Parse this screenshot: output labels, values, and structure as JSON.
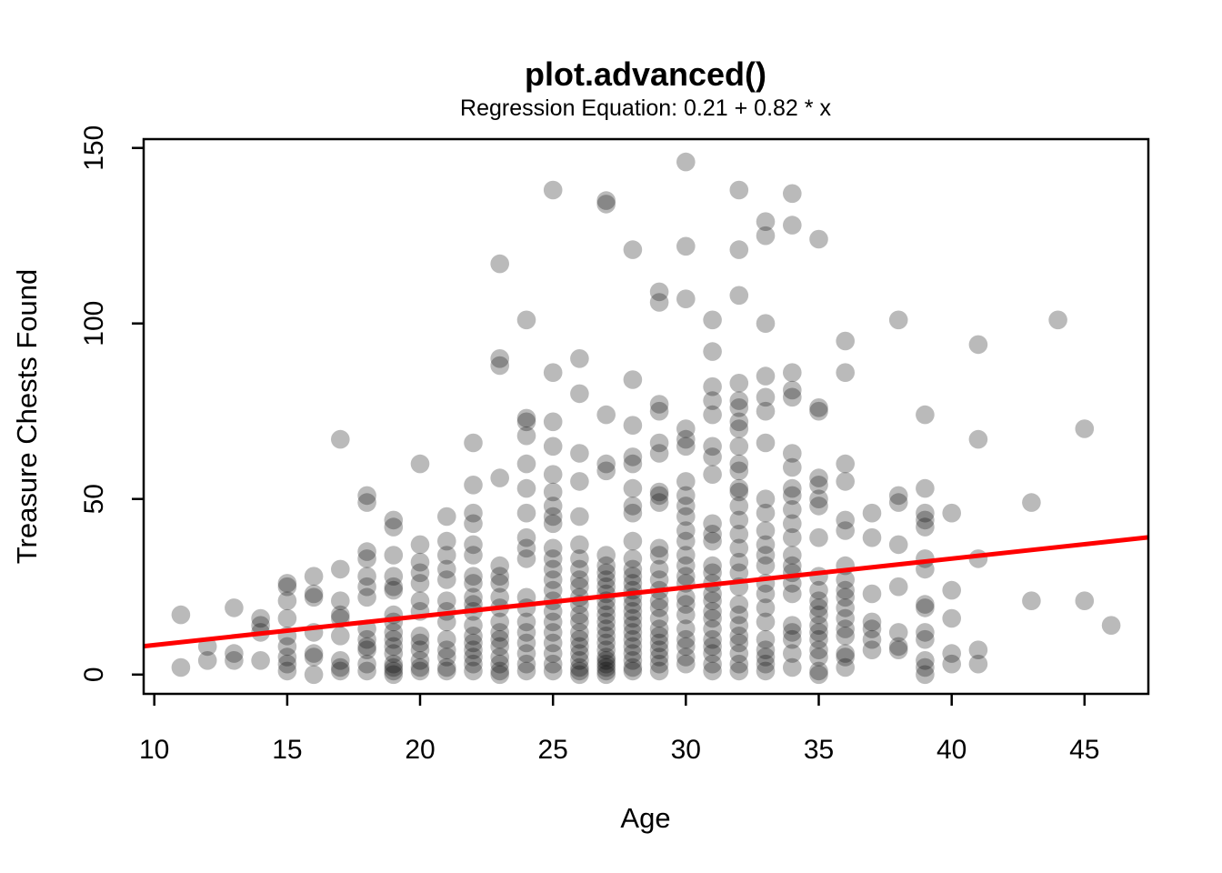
{
  "title": "plot.advanced()",
  "subtitle": "Regression Equation: 0.21 + 0.82 * x",
  "chart_data": {
    "type": "scatter",
    "title": "plot.advanced()",
    "subtitle": "Regression Equation: 0.21 + 0.82 * x",
    "xlabel": "Age",
    "ylabel": "Treasure Chests Found",
    "x_ticks": [
      10,
      15,
      20,
      25,
      30,
      35,
      40,
      45
    ],
    "y_ticks": [
      0,
      50,
      100,
      150
    ],
    "xlim": [
      9.6,
      47.4
    ],
    "ylim": [
      -5.5,
      152.5
    ],
    "grid": false,
    "legend": "none",
    "point_color": "#000000",
    "point_opacity": 0.27,
    "point_radius_px": 10.3,
    "axis_color": "#000000",
    "regression": {
      "intercept": 0.21,
      "slope": 0.82,
      "color": "#ff0000",
      "equation_label": "0.21 + 0.82 * x"
    },
    "points_by_age": {
      "11": [
        17,
        2
      ],
      "12": [
        8,
        4
      ],
      "13": [
        19,
        6,
        4
      ],
      "14": [
        16,
        14,
        12,
        4
      ],
      "15": [
        26,
        25,
        21,
        16,
        11,
        8,
        5,
        3,
        1
      ],
      "16": [
        28,
        23,
        22,
        12,
        6,
        5,
        0
      ],
      "17": [
        67,
        30,
        21,
        17,
        16,
        11,
        4,
        2,
        1
      ],
      "18": [
        51,
        49,
        35,
        33,
        28,
        25,
        22,
        13,
        10,
        8,
        7,
        3,
        1
      ],
      "19": [
        44,
        42,
        34,
        28,
        25,
        24,
        17,
        15,
        12,
        10,
        8,
        6,
        3,
        2,
        1,
        0
      ],
      "20": [
        60,
        37,
        32,
        29,
        26,
        21,
        18,
        11,
        9,
        7,
        4,
        2,
        1
      ],
      "21": [
        45,
        38,
        34,
        30,
        27,
        21,
        18,
        15,
        10,
        7,
        5,
        2,
        1
      ],
      "22": [
        66,
        54,
        46,
        43,
        37,
        34,
        28,
        26,
        22,
        20,
        18,
        14,
        11,
        9,
        7,
        5,
        3,
        1
      ],
      "23": [
        117,
        90,
        88,
        56,
        31,
        28,
        26,
        22,
        19,
        15,
        12,
        10,
        8,
        5,
        3,
        1,
        0
      ],
      "24": [
        101,
        73,
        72,
        68,
        60,
        53,
        46,
        39,
        36,
        33,
        22,
        19,
        15,
        12,
        9,
        6,
        3,
        1
      ],
      "25": [
        138,
        86,
        72,
        65,
        57,
        52,
        48,
        45,
        43,
        36,
        33,
        30,
        27,
        24,
        21,
        18,
        15,
        12,
        9,
        6,
        3,
        1
      ],
      "26": [
        90,
        80,
        63,
        55,
        45,
        37,
        33,
        30,
        27,
        25,
        22,
        20,
        17,
        15,
        12,
        10,
        8,
        6,
        4,
        2,
        1,
        0
      ],
      "27": [
        135,
        134,
        74,
        60,
        58,
        34,
        31,
        29,
        27,
        25,
        23,
        21,
        19,
        17,
        15,
        13,
        11,
        9,
        7,
        5,
        4,
        3,
        2,
        1,
        0
      ],
      "28": [
        121,
        84,
        71,
        62,
        60,
        53,
        48,
        46,
        38,
        33,
        30,
        28,
        26,
        24,
        22,
        20,
        18,
        16,
        14,
        12,
        10,
        8,
        6,
        4,
        2,
        1
      ],
      "29": [
        109,
        106,
        77,
        75,
        66,
        63,
        52,
        51,
        49,
        36,
        34,
        30,
        27,
        24,
        21,
        19,
        16,
        13,
        11,
        9,
        7,
        5,
        3,
        1
      ],
      "30": [
        146,
        122,
        107,
        70,
        67,
        65,
        55,
        51,
        48,
        45,
        41,
        38,
        34,
        31,
        28,
        26,
        22,
        20,
        17,
        13,
        10,
        8,
        5,
        3
      ],
      "31": [
        101,
        92,
        82,
        78,
        74,
        65,
        62,
        57,
        43,
        40,
        38,
        31,
        29,
        26,
        23,
        21,
        18,
        16,
        13,
        10,
        8,
        6,
        3,
        1
      ],
      "32": [
        138,
        121,
        108,
        83,
        78,
        76,
        72,
        70,
        65,
        60,
        58,
        53,
        52,
        48,
        44,
        40,
        36,
        32,
        29,
        25,
        20,
        17,
        14,
        11,
        9,
        6,
        3,
        1
      ],
      "33": [
        129,
        125,
        100,
        85,
        79,
        75,
        66,
        50,
        46,
        41,
        37,
        34,
        31,
        26,
        23,
        19,
        15,
        10,
        7,
        5,
        3,
        1
      ],
      "34": [
        137,
        128,
        86,
        81,
        79,
        63,
        59,
        53,
        51,
        47,
        43,
        39,
        34,
        31,
        29,
        26,
        23,
        14,
        12,
        10,
        6,
        2
      ],
      "35": [
        124,
        76,
        75,
        56,
        54,
        50,
        48,
        39,
        28,
        24,
        21,
        19,
        17,
        14,
        12,
        10,
        7,
        5,
        1,
        0
      ],
      "36": [
        95,
        86,
        60,
        55,
        44,
        41,
        31,
        27,
        24,
        22,
        19,
        16,
        13,
        11,
        6,
        5,
        2
      ],
      "37": [
        46,
        39,
        23,
        15,
        13,
        10,
        7
      ],
      "38": [
        101,
        51,
        49,
        37,
        25,
        12,
        8,
        7
      ],
      "39": [
        74,
        53,
        46,
        44,
        42,
        33,
        30,
        20,
        19,
        12,
        10,
        4,
        2,
        0
      ],
      "40": [
        46,
        24,
        16,
        6,
        3
      ],
      "41": [
        94,
        67,
        33,
        7,
        3
      ],
      "43": [
        49,
        21
      ],
      "44": [
        101
      ],
      "45": [
        70,
        21
      ],
      "46": [
        14
      ]
    }
  }
}
